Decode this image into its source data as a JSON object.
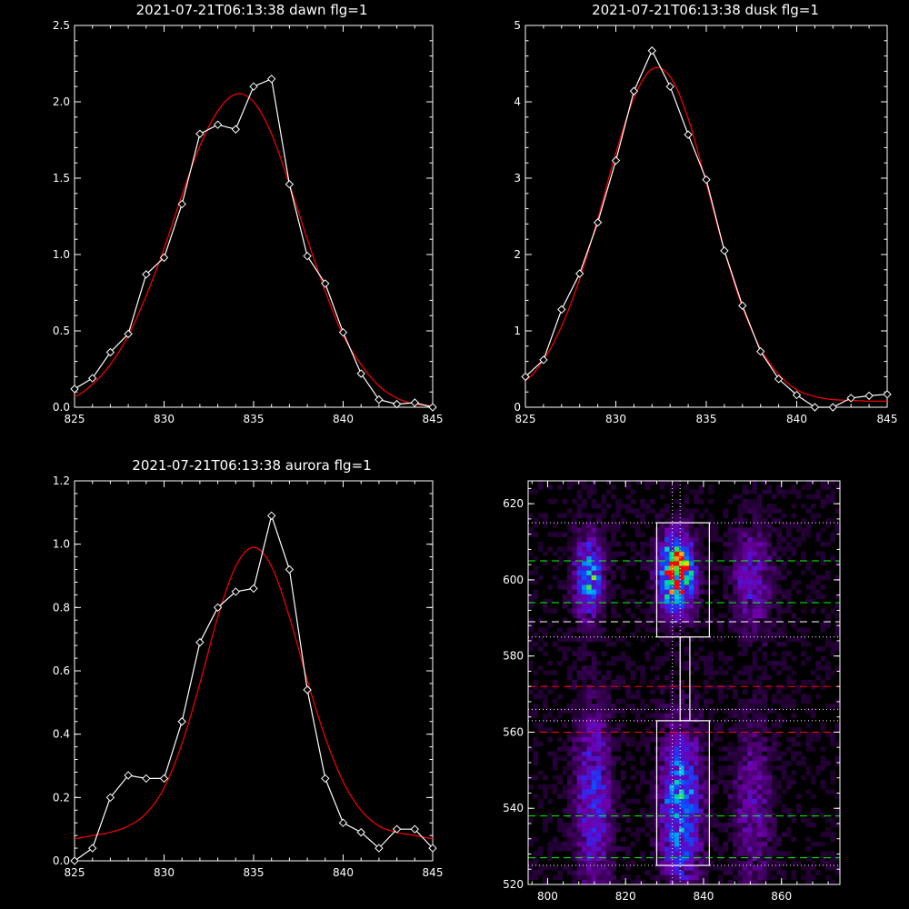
{
  "colors": {
    "background": "#000000",
    "axes": "#ffffff",
    "data": "#ffffff",
    "fit": "#ff0000",
    "green_dash": "#00ff00",
    "red_dash": "#ff0000",
    "white_dash": "#ffffff"
  },
  "chart_data": [
    {
      "type": "line",
      "title": "2021-07-21T06:13:38 dawn flg=1",
      "xlim": [
        825,
        845
      ],
      "ylim": [
        0,
        2.5
      ],
      "xticks": [
        "825",
        "830",
        "835",
        "840",
        "845"
      ],
      "yticks": [
        "0.0",
        "0.5",
        "1.0",
        "1.5",
        "2.0",
        "2.5"
      ],
      "series": [
        {
          "x": [
            825,
            826,
            827,
            828,
            829,
            830,
            831,
            832,
            833,
            834,
            835,
            836,
            837,
            838,
            839,
            840,
            841,
            842,
            843,
            844,
            845
          ],
          "values": [
            0.12,
            0.19,
            0.36,
            0.48,
            0.87,
            0.98,
            1.33,
            1.79,
            1.85,
            1.82,
            2.1,
            2.15,
            1.46,
            0.99,
            0.81,
            0.49,
            0.22,
            0.05,
            0.02,
            0.03,
            0.0
          ]
        },
        {
          "x": [
            825,
            826,
            827,
            828,
            829,
            830,
            831,
            832,
            833,
            834,
            835,
            836,
            837,
            838,
            839,
            840,
            841,
            842,
            843,
            844,
            845
          ],
          "values": [
            0.07,
            0.15,
            0.28,
            0.47,
            0.73,
            1.04,
            1.39,
            1.71,
            1.94,
            2.05,
            2.0,
            1.79,
            1.46,
            1.1,
            0.76,
            0.47,
            0.28,
            0.14,
            0.06,
            0.02,
            0.01
          ]
        }
      ]
    },
    {
      "type": "line",
      "title": "2021-07-21T06:13:38 dusk flg=1",
      "xlim": [
        825,
        845
      ],
      "ylim": [
        0,
        5
      ],
      "xticks": [
        "825",
        "830",
        "835",
        "840",
        "845"
      ],
      "yticks": [
        "0",
        "1",
        "2",
        "3",
        "4",
        "5"
      ],
      "series": [
        {
          "x": [
            825,
            826,
            827,
            828,
            829,
            830,
            831,
            832,
            833,
            834,
            835,
            836,
            837,
            838,
            839,
            840,
            841,
            842,
            843,
            844,
            845
          ],
          "values": [
            0.4,
            0.62,
            1.28,
            1.75,
            2.42,
            3.23,
            4.14,
            4.67,
            4.2,
            3.57,
            2.98,
            2.05,
            1.33,
            0.73,
            0.37,
            0.16,
            0.0,
            0.0,
            0.12,
            0.15,
            0.17
          ]
        },
        {
          "x": [
            825,
            826,
            827,
            828,
            829,
            830,
            831,
            832,
            833,
            834,
            835,
            836,
            837,
            838,
            839,
            840,
            841,
            842,
            843,
            844,
            845
          ],
          "values": [
            0.35,
            0.62,
            1.06,
            1.68,
            2.47,
            3.33,
            4.05,
            4.43,
            4.33,
            3.78,
            2.93,
            2.05,
            1.31,
            0.77,
            0.43,
            0.23,
            0.14,
            0.1,
            0.09,
            0.08,
            0.08
          ]
        }
      ]
    },
    {
      "type": "line",
      "title": "2021-07-21T06:13:38 aurora flg=1",
      "xlim": [
        825,
        845
      ],
      "ylim": [
        0,
        1.2
      ],
      "xticks": [
        "825",
        "830",
        "835",
        "840",
        "845"
      ],
      "yticks": [
        "0.0",
        "0.2",
        "0.4",
        "0.6",
        "0.8",
        "1.0",
        "1.2"
      ],
      "series": [
        {
          "x": [
            825,
            826,
            827,
            828,
            829,
            830,
            831,
            832,
            833,
            834,
            835,
            836,
            837,
            838,
            839,
            840,
            841,
            842,
            843,
            844,
            845
          ],
          "values": [
            0.0,
            0.04,
            0.2,
            0.27,
            0.26,
            0.26,
            0.44,
            0.69,
            0.8,
            0.85,
            0.86,
            1.09,
            0.92,
            0.54,
            0.26,
            0.12,
            0.09,
            0.04,
            0.1,
            0.1,
            0.04
          ]
        },
        {
          "x": [
            825,
            826,
            827,
            828,
            829,
            830,
            831,
            832,
            833,
            834,
            835,
            836,
            837,
            838,
            839,
            840,
            841,
            842,
            843,
            844,
            845
          ],
          "values": [
            0.07,
            0.08,
            0.09,
            0.11,
            0.15,
            0.23,
            0.37,
            0.56,
            0.77,
            0.93,
            0.99,
            0.93,
            0.77,
            0.57,
            0.39,
            0.25,
            0.16,
            0.11,
            0.09,
            0.08,
            0.07
          ]
        }
      ]
    },
    {
      "type": "heatmap",
      "xlim": [
        795,
        875
      ],
      "ylim": [
        520,
        626
      ],
      "xticks": [
        "800",
        "820",
        "840",
        "860"
      ],
      "yticks": [
        "520",
        "540",
        "560",
        "580",
        "600",
        "620"
      ],
      "blobs": [
        {
          "x": 810,
          "y": 600,
          "sx": 2.6,
          "sy": 7,
          "amp": 0.55
        },
        {
          "x": 811,
          "y": 542,
          "sx": 3.2,
          "sy": 16,
          "amp": 0.35
        },
        {
          "x": 832.5,
          "y": 601,
          "sx": 3.0,
          "sy": 6.5,
          "amp": 1.0
        },
        {
          "x": 833.5,
          "y": 540,
          "sx": 3.5,
          "sy": 14,
          "amp": 0.55
        },
        {
          "x": 852,
          "y": 600,
          "sx": 3.5,
          "sy": 9,
          "amp": 0.28
        },
        {
          "x": 852,
          "y": 540,
          "sx": 3.5,
          "sy": 14,
          "amp": 0.22
        }
      ],
      "boxes": [
        {
          "x0": 828,
          "x1": 841.5,
          "y0": 585,
          "y1": 615
        },
        {
          "x0": 828,
          "x1": 841.5,
          "y0": 525,
          "y1": 563
        }
      ],
      "connector": {
        "x0": 834,
        "x1": 836.5,
        "y0": 563,
        "y1": 585
      },
      "vlines_dotted": [
        832,
        834
      ],
      "hlines_dotted": [
        615,
        585,
        566,
        563,
        525
      ],
      "hlines_green_dashed": [
        605,
        594,
        538,
        527
      ],
      "hlines_white_dashed": [
        589
      ],
      "hlines_red_dashed": [
        572,
        560
      ]
    }
  ]
}
